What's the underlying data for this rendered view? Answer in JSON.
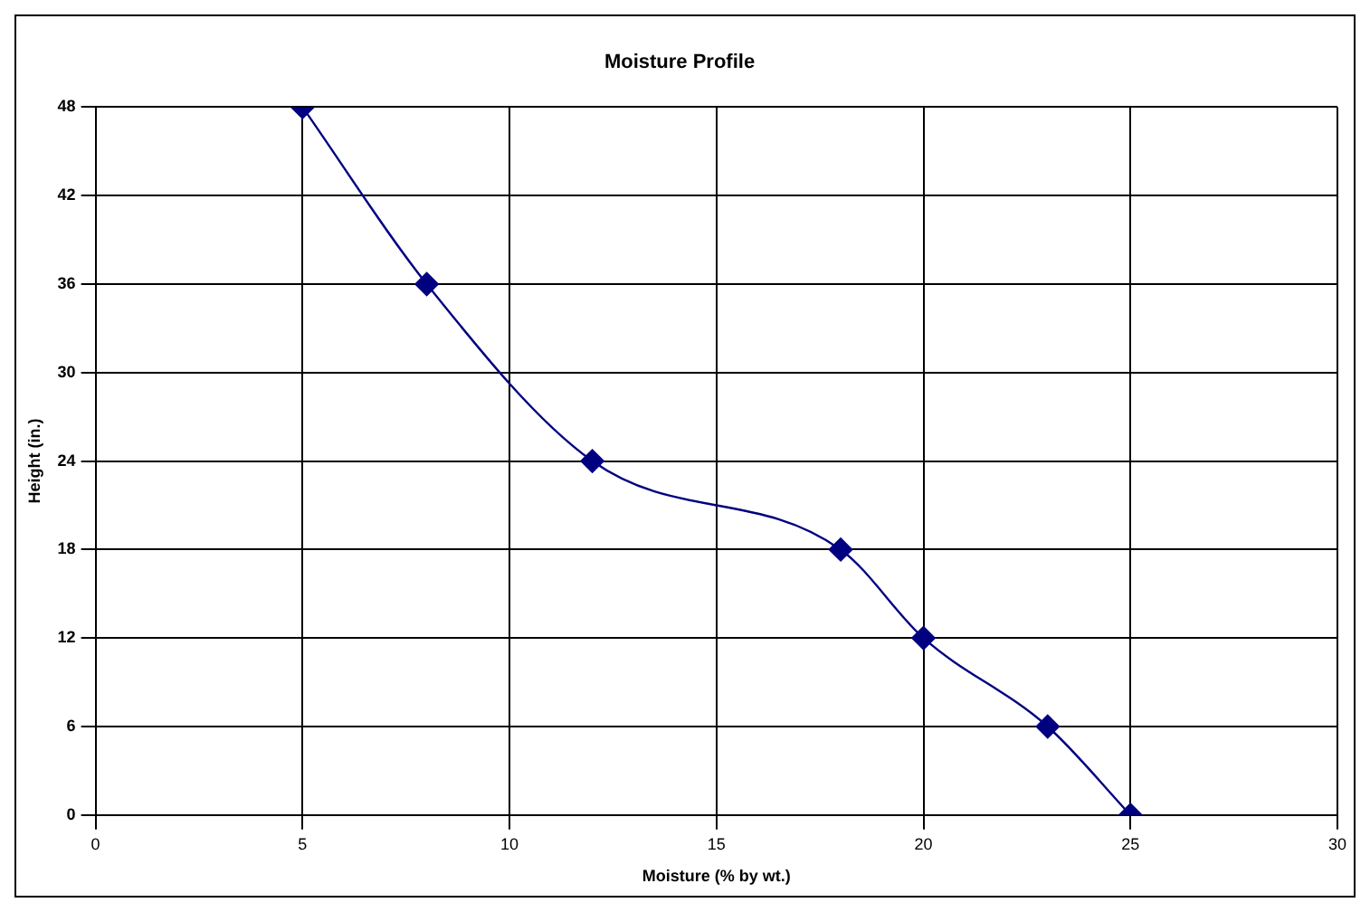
{
  "chart_data": {
    "type": "line",
    "title": "Moisture Profile",
    "xlabel": "Moisture (% by wt.)",
    "ylabel": "Height (in.)",
    "x": [
      5,
      8,
      12,
      18,
      20,
      23,
      25
    ],
    "series": [
      {
        "color": "#000080",
        "values": [
          48,
          36,
          24,
          18,
          12,
          6,
          0
        ]
      }
    ],
    "xlim": [
      0,
      30
    ],
    "xticks": [
      0,
      5,
      10,
      15,
      20,
      25,
      30
    ],
    "ylim": [
      0,
      48
    ],
    "yticks": [
      0,
      6,
      12,
      18,
      24,
      30,
      36,
      42,
      48
    ],
    "grid": true,
    "legend": false,
    "marker": "diamond",
    "line_style": "solid"
  }
}
